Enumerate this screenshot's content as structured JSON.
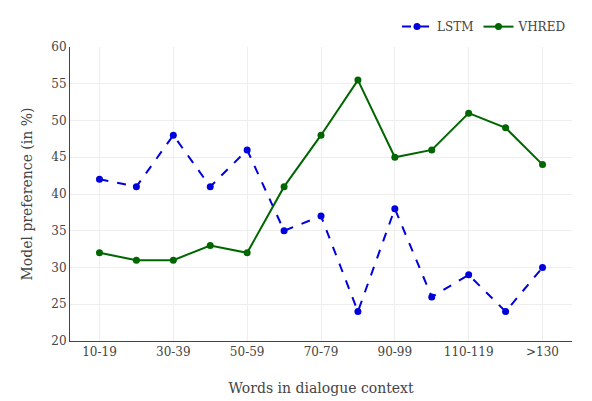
{
  "chart_data": {
    "type": "line",
    "xlabel": "Words in dialogue context",
    "ylabel": "Model preference (in %)",
    "categories": [
      "10-19",
      null,
      "30-39",
      null,
      "50-59",
      null,
      "70-79",
      null,
      "90-99",
      null,
      "110-119",
      null,
      ">130"
    ],
    "series": [
      {
        "name": "LSTM",
        "color": "#0000dd",
        "marker": "circle",
        "line_style": "dashed",
        "values": [
          42,
          41,
          48,
          41,
          46,
          35,
          37,
          24,
          38,
          26,
          29,
          24,
          30
        ]
      },
      {
        "name": "VHRED",
        "color": "#006600",
        "marker": "circle",
        "line_style": "solid",
        "values": [
          32,
          31,
          31,
          33,
          32,
          41,
          48,
          55.5,
          45,
          46,
          51,
          49,
          44
        ]
      }
    ],
    "ylim": [
      20,
      60
    ],
    "yticks": [
      20,
      25,
      30,
      35,
      40,
      45,
      50,
      55,
      60
    ],
    "grid": true,
    "legend": "upper right"
  }
}
